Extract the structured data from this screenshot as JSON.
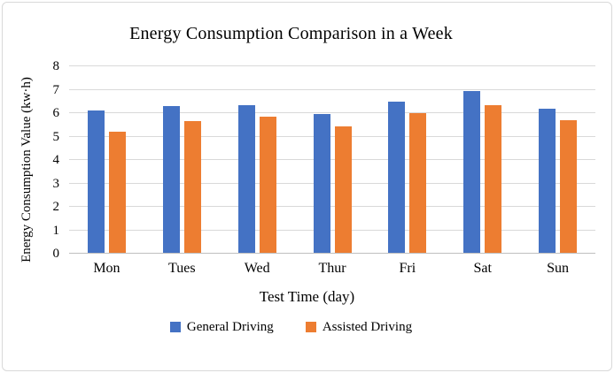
{
  "chart_data": {
    "type": "bar",
    "title": "Energy Consumption Comparison in a Week",
    "categories": [
      "Mon",
      "Tues",
      "Wed",
      "Thur",
      "Fri",
      "Sat",
      "Sun"
    ],
    "series": [
      {
        "name": "General Driving",
        "color": "#4472C4",
        "values": [
          6.1,
          6.3,
          6.35,
          5.95,
          6.5,
          6.95,
          6.2
        ]
      },
      {
        "name": "Assisted Driving",
        "color": "#ED7D31",
        "values": [
          5.2,
          5.65,
          5.85,
          5.45,
          6.0,
          6.35,
          5.7
        ]
      }
    ],
    "xlabel": "Test Time (day)",
    "ylabel": "Energy Consumption Value (kw·h)",
    "ylim": [
      0,
      8
    ],
    "ytick_step": 1,
    "yticks": [
      0,
      1,
      2,
      3,
      4,
      5,
      6,
      7,
      8
    ],
    "grid": true,
    "legend_position": "bottom",
    "colors": {
      "gridline": "#D9D9D9",
      "axis_line": "#BFBFBF",
      "text": "#000000",
      "card_border": "#D9D9D9",
      "background": "#FFFFFF"
    }
  }
}
